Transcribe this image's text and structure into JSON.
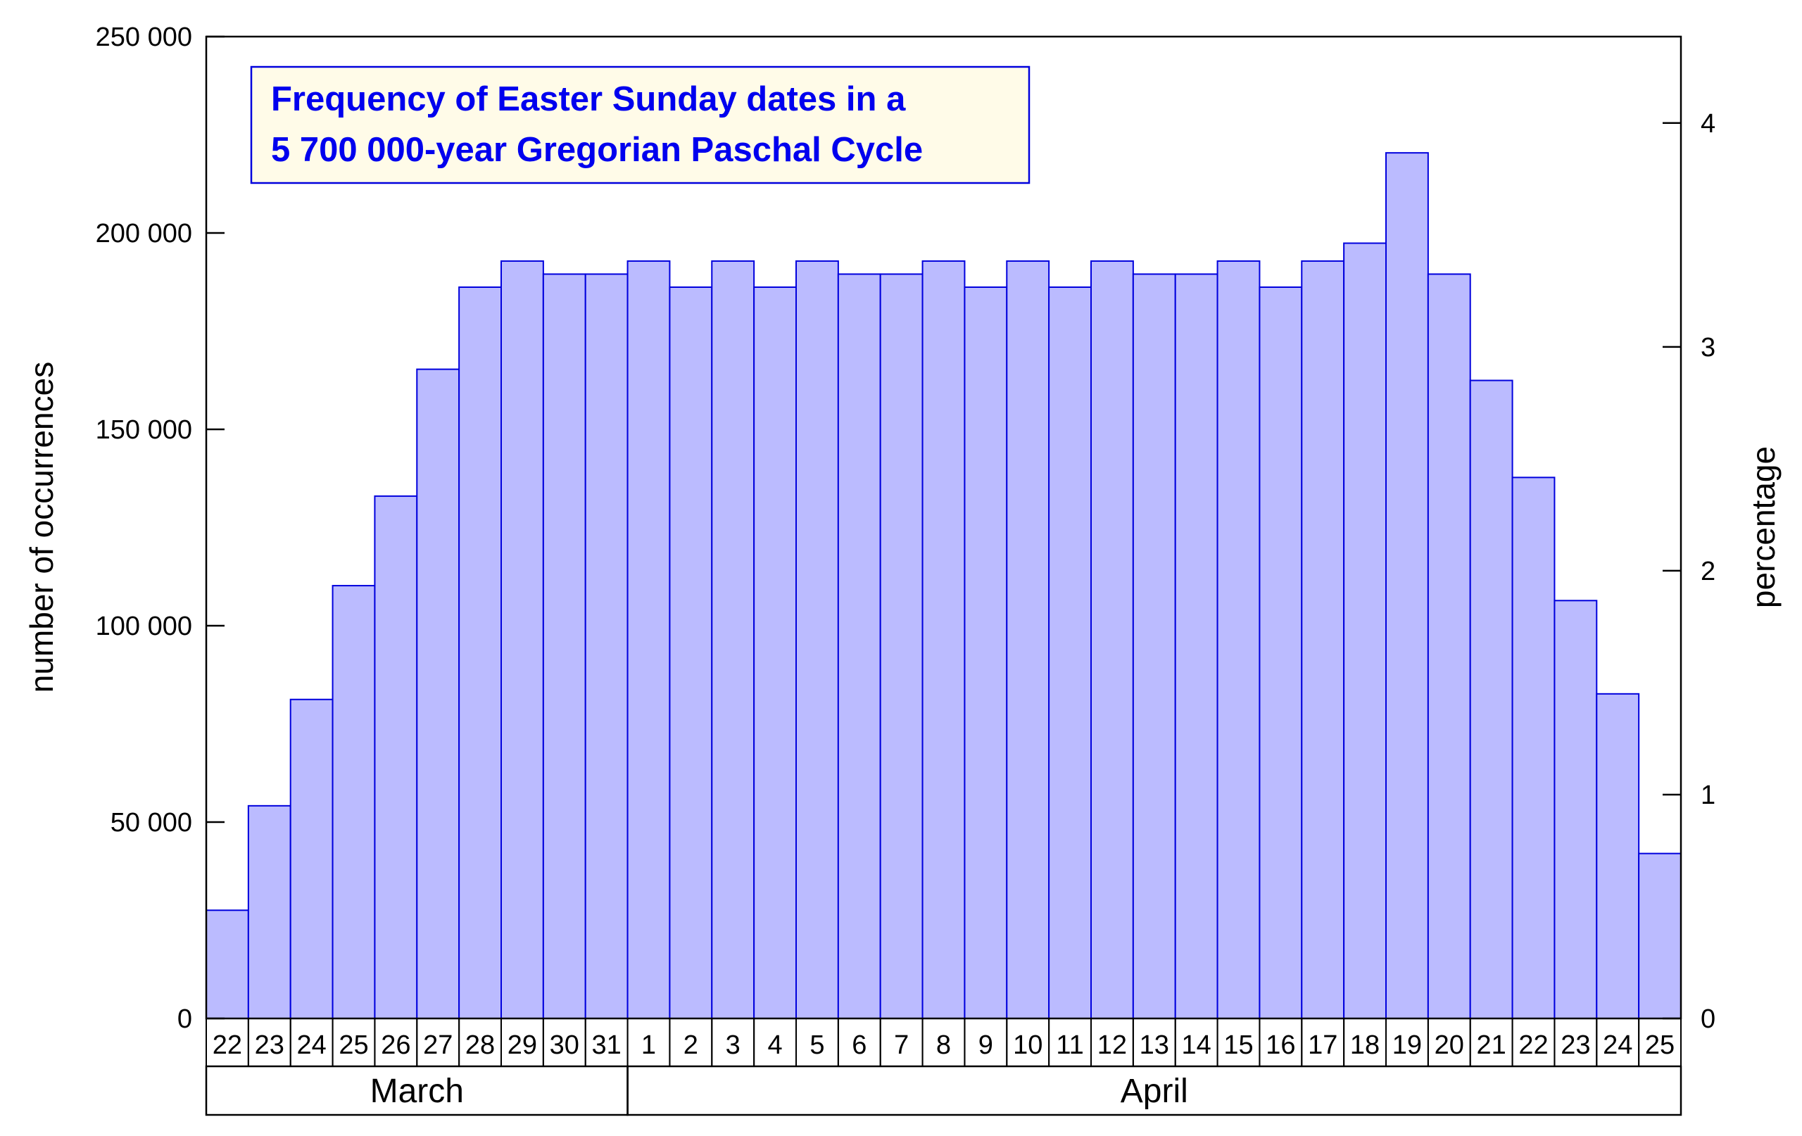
{
  "chart_data": {
    "type": "bar",
    "title_lines": [
      "Frequency of Easter Sunday dates in a",
      "5 700 000-year Gregorian Paschal Cycle"
    ],
    "ylabel": "number of occurrences",
    "ylabel_right": "percentage",
    "ylim": [
      0,
      250000
    ],
    "yticks": [
      0,
      50000,
      100000,
      150000,
      200000,
      250000
    ],
    "ytick_labels": [
      "0",
      "50 000",
      "100 000",
      "150 000",
      "200 000",
      "250 000"
    ],
    "yticks_right": [
      0,
      1,
      2,
      3,
      4
    ],
    "ytick_right_labels": [
      "0",
      "1",
      "2",
      "3",
      "4"
    ],
    "right_axis_total": 5700000,
    "categories": [
      "22",
      "23",
      "24",
      "25",
      "26",
      "27",
      "28",
      "29",
      "30",
      "31",
      "1",
      "2",
      "3",
      "4",
      "5",
      "6",
      "7",
      "8",
      "9",
      "10",
      "11",
      "12",
      "13",
      "14",
      "15",
      "16",
      "17",
      "18",
      "19",
      "20",
      "21",
      "22",
      "23",
      "24",
      "25"
    ],
    "months": [
      {
        "label": "March",
        "count": 10
      },
      {
        "label": "April",
        "count": 25
      }
    ],
    "values": [
      27550,
      54150,
      81225,
      110200,
      133000,
      165300,
      186200,
      192850,
      189525,
      189525,
      192850,
      186200,
      192850,
      186200,
      192850,
      189525,
      189525,
      192850,
      186200,
      192850,
      186200,
      192850,
      189525,
      189525,
      192850,
      186200,
      192850,
      197400,
      220400,
      189525,
      162450,
      137750,
      106400,
      82650,
      42000
    ],
    "colors": {
      "bar_fill": "#bbbbff",
      "bar_stroke": "#0000dd",
      "title_text": "#0000ee",
      "title_box_fill": "#fffbe8",
      "title_box_stroke": "#0000dd",
      "axis": "#000000"
    },
    "grid": false,
    "legend": "none"
  }
}
